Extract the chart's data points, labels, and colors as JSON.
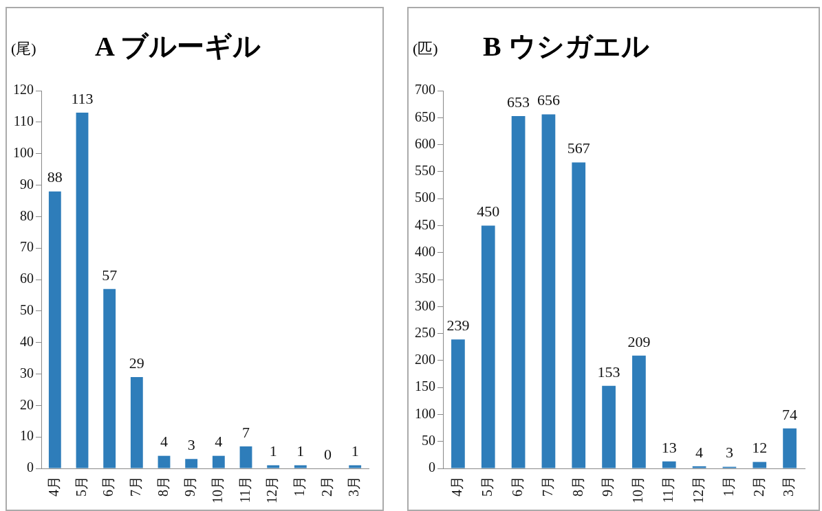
{
  "chart_data": [
    {
      "type": "bar",
      "title": "A ブルーギル",
      "ylabel": "(尾)",
      "categories": [
        "4月",
        "5月",
        "6月",
        "7月",
        "8月",
        "9月",
        "10月",
        "11月",
        "12月",
        "1月",
        "2月",
        "3月"
      ],
      "values": [
        88,
        113,
        57,
        29,
        4,
        3,
        4,
        7,
        1,
        1,
        0,
        1
      ],
      "color": "#2e7dba",
      "ylim": [
        0,
        120
      ],
      "yticks": [
        0,
        10,
        20,
        30,
        40,
        50,
        60,
        70,
        80,
        90,
        100,
        110,
        120
      ],
      "grid": false,
      "legend": false,
      "data_labels": true
    },
    {
      "type": "bar",
      "title": "B ウシガエル",
      "ylabel": "(匹)",
      "categories": [
        "4月",
        "5月",
        "6月",
        "7月",
        "8月",
        "9月",
        "10月",
        "11月",
        "12月",
        "1月",
        "2月",
        "3月"
      ],
      "values": [
        239,
        450,
        653,
        656,
        567,
        153,
        209,
        13,
        4,
        3,
        12,
        74
      ],
      "color": "#2e7dba",
      "ylim": [
        0,
        700
      ],
      "yticks": [
        0,
        50,
        100,
        150,
        200,
        250,
        300,
        350,
        400,
        450,
        500,
        550,
        600,
        650,
        700
      ],
      "grid": false,
      "legend": false,
      "data_labels": true
    }
  ]
}
